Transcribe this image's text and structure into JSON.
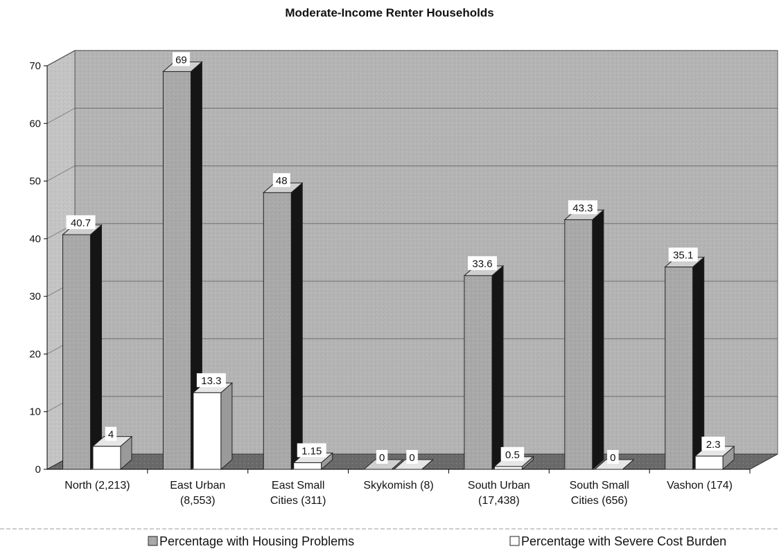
{
  "chart_data": {
    "type": "bar",
    "title": "Moderate-Income Renter Households",
    "categories": [
      [
        "North (2,213)"
      ],
      [
        "East Urban",
        "(8,553)"
      ],
      [
        "East Small",
        "Cities (311)"
      ],
      [
        "Skykomish (8)"
      ],
      [
        "South Urban",
        "(17,438)"
      ],
      [
        "South Small",
        "Cities (656)"
      ],
      [
        "Vashon (174)"
      ]
    ],
    "series": [
      {
        "name": "Percentage with Housing Problems",
        "values": [
          40.7,
          69,
          48,
          0,
          33.6,
          43.3,
          35.1
        ],
        "labels": [
          "40.7",
          "69",
          "48",
          "0",
          "33.6",
          "43.3",
          "35.1"
        ]
      },
      {
        "name": "Percentage with Severe Cost Burden",
        "values": [
          4,
          13.3,
          1.15,
          0,
          0.5,
          0,
          2.3
        ],
        "labels": [
          "4",
          "13.3",
          "1.15",
          "0",
          "0.5",
          "0",
          "2.3"
        ]
      }
    ],
    "yticks": [
      "0",
      "10",
      "20",
      "30",
      "40",
      "50",
      "60",
      "70"
    ],
    "ylim": [
      0,
      70
    ],
    "grid": true,
    "legend": "bottom",
    "colors": {
      "wall": "#b4b4b4",
      "floor": "#6a6a6a",
      "housing_front": "#a9a9a9",
      "housing_side": "#151515",
      "housing_top": "#cfcfcf",
      "burden_front": "#ffffff",
      "burden_side": "#9a9a9a",
      "burden_top": "#e6e6e6"
    }
  }
}
